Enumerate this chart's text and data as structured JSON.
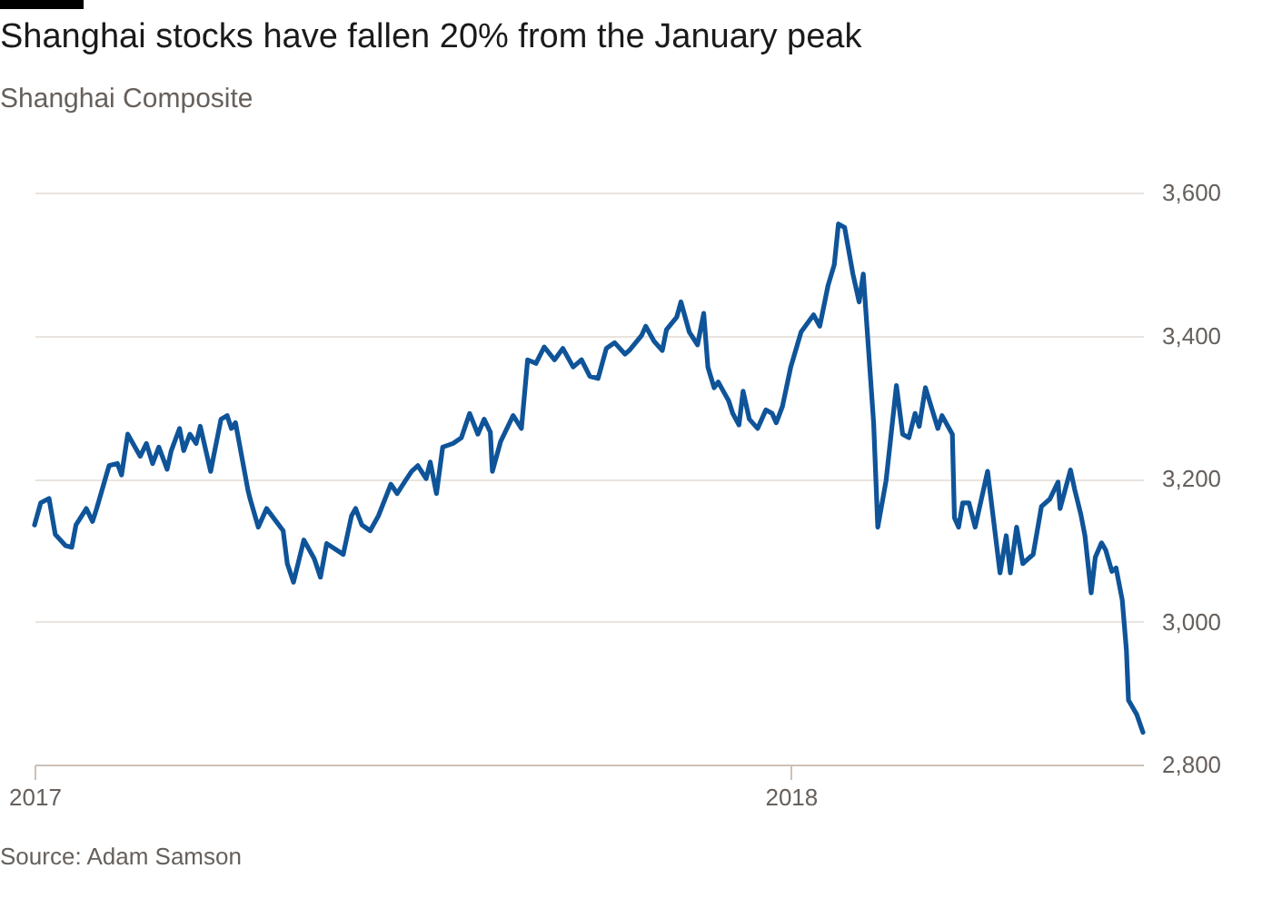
{
  "chart_data": {
    "type": "line",
    "title": "Shanghai stocks have fallen 20% from the January peak",
    "subtitle": "Shanghai Composite",
    "annotations": [
      "Source: Adam Samson"
    ],
    "x": [
      "2017-01-01",
      "2017-01-04",
      "2017-01-08",
      "2017-01-11",
      "2017-01-16",
      "2017-01-19",
      "2017-01-21",
      "2017-01-26",
      "2017-01-29",
      "2017-01-31",
      "2017-02-06",
      "2017-02-10",
      "2017-02-12",
      "2017-02-15",
      "2017-02-21",
      "2017-02-24",
      "2017-02-27",
      "2017-03-02",
      "2017-03-06",
      "2017-03-08",
      "2017-03-12",
      "2017-03-14",
      "2017-03-17",
      "2017-03-20",
      "2017-03-22",
      "2017-03-27",
      "2017-04-01",
      "2017-04-04",
      "2017-04-06",
      "2017-04-08",
      "2017-04-14",
      "2017-04-15",
      "2017-04-19",
      "2017-04-23",
      "2017-05-01",
      "2017-05-03",
      "2017-05-06",
      "2017-05-11",
      "2017-05-16",
      "2017-05-19",
      "2017-05-22",
      "2017-05-30",
      "2017-06-03",
      "2017-06-05",
      "2017-06-08",
      "2017-06-12",
      "2017-06-16",
      "2017-06-22",
      "2017-06-25",
      "2017-06-29",
      "2017-07-02",
      "2017-07-05",
      "2017-07-09",
      "2017-07-11",
      "2017-07-14",
      "2017-07-17",
      "2017-07-22",
      "2017-07-26",
      "2017-07-30",
      "2017-08-03",
      "2017-08-06",
      "2017-08-09",
      "2017-08-10",
      "2017-08-14",
      "2017-08-20",
      "2017-08-24",
      "2017-08-27",
      "2017-08-31",
      "2017-09-04",
      "2017-09-09",
      "2017-09-13",
      "2017-09-18",
      "2017-09-22",
      "2017-09-26",
      "2017-09-30",
      "2017-10-04",
      "2017-10-08",
      "2017-10-13",
      "2017-10-15",
      "2017-10-21",
      "2017-10-23",
      "2017-10-27",
      "2017-10-31",
      "2017-11-02",
      "2017-11-07",
      "2017-11-09",
      "2017-11-13",
      "2017-11-17",
      "2017-11-20",
      "2017-11-22",
      "2017-11-25",
      "2017-11-27",
      "2017-12-02",
      "2017-12-04",
      "2017-12-07",
      "2017-12-09",
      "2017-12-12",
      "2017-12-16",
      "2017-12-20",
      "2017-12-23",
      "2017-12-25",
      "2017-12-28",
      "2018-01-01",
      "2018-01-06",
      "2018-01-10",
      "2018-01-12",
      "2018-01-15",
      "2018-01-19",
      "2018-01-22",
      "2018-01-24",
      "2018-01-27",
      "2018-01-31",
      "2018-02-03",
      "2018-02-05",
      "2018-02-10",
      "2018-02-12",
      "2018-02-16",
      "2018-02-21",
      "2018-02-24",
      "2018-02-27",
      "2018-03-02",
      "2018-03-04",
      "2018-03-07",
      "2018-03-13",
      "2018-03-15",
      "2018-03-20",
      "2018-03-21",
      "2018-03-23",
      "2018-03-25",
      "2018-03-28",
      "2018-03-31",
      "2018-04-06",
      "2018-04-12",
      "2018-04-15",
      "2018-04-17",
      "2018-04-20",
      "2018-04-23",
      "2018-04-28",
      "2018-05-02",
      "2018-05-06",
      "2018-05-10",
      "2018-05-11",
      "2018-05-16",
      "2018-05-18",
      "2018-05-21",
      "2018-05-23",
      "2018-05-26",
      "2018-05-28",
      "2018-05-31",
      "2018-06-02",
      "2018-06-05",
      "2018-06-07",
      "2018-06-10",
      "2018-06-12",
      "2018-06-13",
      "2018-06-15",
      "2018-06-17",
      "2018-06-20"
    ],
    "series": [
      {
        "color": "#0f5499",
        "values": [
          3135,
          3166,
          3172,
          3122,
          3106,
          3104,
          3135,
          3158,
          3140,
          3158,
          3218,
          3221,
          3205,
          3262,
          3231,
          3249,
          3221,
          3244,
          3213,
          3239,
          3270,
          3239,
          3262,
          3249,
          3273,
          3210,
          3283,
          3288,
          3270,
          3278,
          3184,
          3172,
          3132,
          3158,
          3127,
          3081,
          3055,
          3114,
          3088,
          3062,
          3109,
          3094,
          3148,
          3158,
          3135,
          3127,
          3148,
          3192,
          3179,
          3197,
          3210,
          3218,
          3200,
          3223,
          3179,
          3244,
          3249,
          3257,
          3291,
          3262,
          3283,
          3265,
          3210,
          3252,
          3288,
          3270,
          3366,
          3361,
          3384,
          3366,
          3382,
          3356,
          3366,
          3343,
          3340,
          3382,
          3390,
          3374,
          3379,
          3400,
          3413,
          3392,
          3379,
          3408,
          3426,
          3447,
          3405,
          3387,
          3431,
          3356,
          3327,
          3335,
          3309,
          3291,
          3275,
          3322,
          3283,
          3270,
          3296,
          3291,
          3278,
          3301,
          3356,
          3405,
          3421,
          3429,
          3413,
          3470,
          3499,
          3556,
          3551,
          3486,
          3447,
          3486,
          3278,
          3132,
          3197,
          3330,
          3262,
          3257,
          3291,
          3273,
          3327,
          3270,
          3288,
          3262,
          3145,
          3132,
          3166,
          3166,
          3132,
          3210,
          3068,
          3120,
          3068,
          3132,
          3081,
          3094,
          3161,
          3171,
          3195,
          3158,
          3212,
          3185,
          3150,
          3120,
          3040,
          3090,
          3110,
          3100,
          3070,
          3075,
          3030,
          2960,
          2890,
          2880,
          2870,
          2845
        ]
      }
    ],
    "xlim": [
      "2017-01-01",
      "2018-06-20"
    ],
    "xticks": [
      {
        "value": "2017-01-01",
        "label": "2017"
      },
      {
        "value": "2018-01-01",
        "label": "2018"
      }
    ],
    "ylim": [
      2800,
      3600
    ],
    "yticks": [
      {
        "value": 2800,
        "label": "2,800"
      },
      {
        "value": 3000,
        "label": "3,000"
      },
      {
        "value": 3200,
        "label": "3,200"
      },
      {
        "value": 3400,
        "label": "3,400"
      },
      {
        "value": 3600,
        "label": "3,600"
      }
    ],
    "grid": "y",
    "marker": "none",
    "line_style": "solid"
  }
}
